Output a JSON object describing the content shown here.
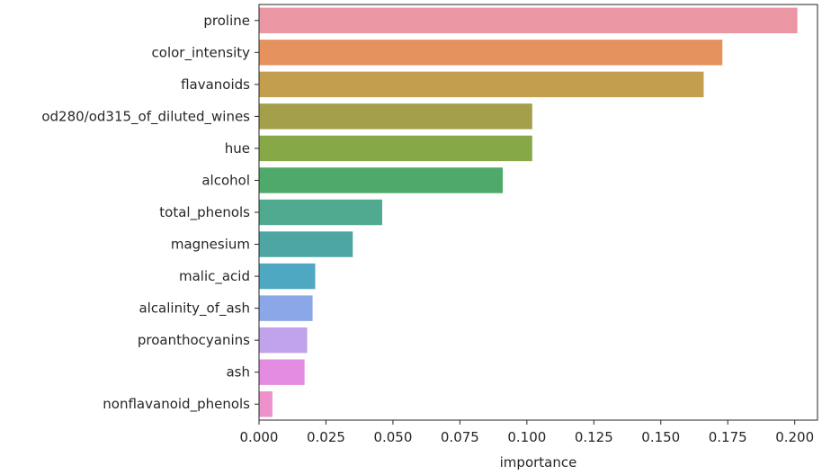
{
  "chart_data": {
    "type": "bar",
    "orientation": "horizontal",
    "xlabel": "importance",
    "ylabel": "",
    "xlim": [
      0,
      0.2085
    ],
    "xticks": [
      "0.000",
      "0.025",
      "0.050",
      "0.075",
      "0.100",
      "0.125",
      "0.150",
      "0.175",
      "0.200"
    ],
    "categories": [
      "proline",
      "color_intensity",
      "flavanoids",
      "od280/od315_of_diluted_wines",
      "hue",
      "alcohol",
      "total_phenols",
      "magnesium",
      "malic_acid",
      "alcalinity_of_ash",
      "proanthocyanins",
      "ash",
      "nonflavanoid_phenols"
    ],
    "values": [
      0.201,
      0.173,
      0.166,
      0.102,
      0.102,
      0.091,
      0.046,
      0.035,
      0.021,
      0.02,
      0.018,
      0.017,
      0.005
    ],
    "colors": [
      "#ea96a3",
      "#e5925f",
      "#c29e4e",
      "#a39f4b",
      "#86a847",
      "#4ea96a",
      "#50aa8f",
      "#4ea6a2",
      "#4fa8c2",
      "#8ca7e8",
      "#c0a3ea",
      "#e38ce2",
      "#ec91cb"
    ],
    "grid": false,
    "legend": "none"
  }
}
